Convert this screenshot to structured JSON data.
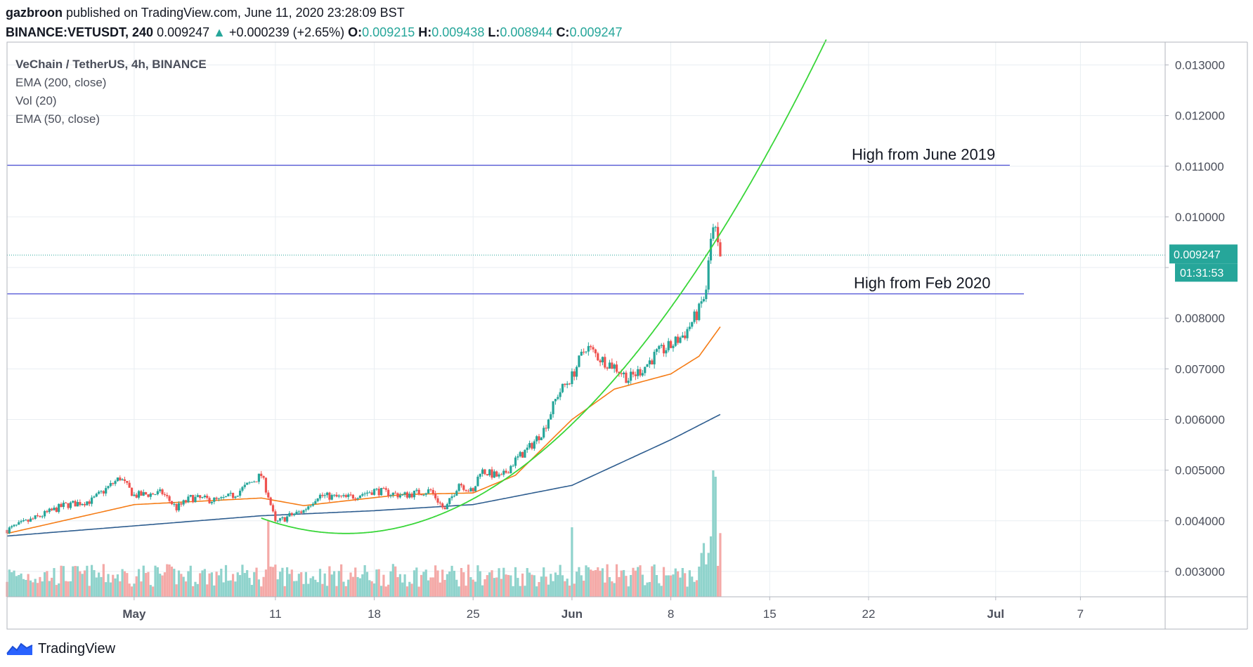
{
  "header": {
    "author": "gazbroon",
    "published_text": "published on TradingView.com, June 11, 2020 23:28:09 BST",
    "symbol": "BINANCE:VETUSDT, 240",
    "last": "0.009247",
    "change_arrow": "▲",
    "change": "+0.000239 (+2.65%)",
    "o_label": "O:",
    "o_value": "0.009215",
    "h_label": "H:",
    "h_value": "0.009438",
    "l_label": "L:",
    "l_value": "0.008944",
    "c_label": "C:",
    "c_value": "0.009247"
  },
  "legend": {
    "title": "VeChain / TetherUS, 4h, BINANCE",
    "items": [
      "EMA (200, close)",
      "Vol (20)",
      "EMA (50, close)"
    ]
  },
  "annotations": {
    "high_june_2019": "High from June 2019",
    "high_feb_2020": "High from Feb 2020"
  },
  "price_tag": "0.009247",
  "countdown_tag": "01:31:53",
  "footer": {
    "brand": "TradingView",
    "logo_icon": "tradingview-logo-icon"
  },
  "colors": {
    "up": "#26a69a",
    "down": "#ef5350",
    "ema50": "#f57c16",
    "ema200": "#2e5d8f",
    "curve": "#39d639",
    "hline": "#3b3fd1",
    "price_tag": "#26a69a"
  },
  "chart_data": {
    "type": "candlestick",
    "timeframe": "4h",
    "symbol": "VETUSDT",
    "y_ticks": [
      0.003,
      0.004,
      0.005,
      0.006,
      0.007,
      0.008,
      0.009,
      0.01,
      0.011,
      0.012,
      0.013
    ],
    "y_tick_labels": [
      "0.003000",
      "0.004000",
      "0.005000",
      "0.006000",
      "0.007000",
      "0.008000",
      "0.009000",
      "0.010000",
      "0.011000",
      "0.012000",
      "0.013000"
    ],
    "y_range": [
      0.0025,
      0.01345
    ],
    "x_ticks": [
      {
        "label": "May",
        "date": "2020-05-01",
        "bold": true
      },
      {
        "label": "11",
        "date": "2020-05-11",
        "bold": false
      },
      {
        "label": "18",
        "date": "2020-05-18",
        "bold": false
      },
      {
        "label": "25",
        "date": "2020-05-25",
        "bold": false
      },
      {
        "label": "Jun",
        "date": "2020-06-01",
        "bold": true
      },
      {
        "label": "8",
        "date": "2020-06-08",
        "bold": false
      },
      {
        "label": "15",
        "date": "2020-06-15",
        "bold": false
      },
      {
        "label": "22",
        "date": "2020-06-22",
        "bold": false
      },
      {
        "label": "Jul",
        "date": "2020-07-01",
        "bold": true
      },
      {
        "label": "7",
        "date": "2020-07-07",
        "bold": false
      }
    ],
    "x_range": [
      "2020-04-22",
      "2020-07-13"
    ],
    "price_anchor": [
      [
        "2020-04-22",
        0.00382
      ],
      [
        "2020-04-24",
        0.00405
      ],
      [
        "2020-04-26",
        0.0043
      ],
      [
        "2020-04-28",
        0.0044
      ],
      [
        "2020-04-30",
        0.00485
      ],
      [
        "2020-05-01",
        0.0045
      ],
      [
        "2020-05-03",
        0.00455
      ],
      [
        "2020-05-04",
        0.00425
      ],
      [
        "2020-05-05",
        0.00445
      ],
      [
        "2020-05-07",
        0.0044
      ],
      [
        "2020-05-08",
        0.0045
      ],
      [
        "2020-05-10",
        0.0049
      ],
      [
        "2020-05-10T12",
        0.0045
      ],
      [
        "2020-05-11",
        0.00395
      ],
      [
        "2020-05-12",
        0.0041
      ],
      [
        "2020-05-13",
        0.0042
      ],
      [
        "2020-05-14",
        0.0045
      ],
      [
        "2020-05-16",
        0.00445
      ],
      [
        "2020-05-18",
        0.0046
      ],
      [
        "2020-05-20",
        0.0045
      ],
      [
        "2020-05-22",
        0.0046
      ],
      [
        "2020-05-23",
        0.0042
      ],
      [
        "2020-05-24",
        0.00475
      ],
      [
        "2020-05-25",
        0.00455
      ],
      [
        "2020-05-25T12",
        0.005
      ],
      [
        "2020-05-27",
        0.00485
      ],
      [
        "2020-05-28",
        0.0052
      ],
      [
        "2020-05-29",
        0.00545
      ],
      [
        "2020-05-30",
        0.0058
      ],
      [
        "2020-05-31",
        0.0065
      ],
      [
        "2020-06-01",
        0.00685
      ],
      [
        "2020-06-02",
        0.00745
      ],
      [
        "2020-06-03",
        0.0072
      ],
      [
        "2020-06-04",
        0.00705
      ],
      [
        "2020-06-05",
        0.0068
      ],
      [
        "2020-06-06",
        0.007
      ],
      [
        "2020-06-07",
        0.0073
      ],
      [
        "2020-06-08",
        0.00745
      ],
      [
        "2020-06-09",
        0.0077
      ],
      [
        "2020-06-10",
        0.00815
      ],
      [
        "2020-06-10T12",
        0.0086
      ],
      [
        "2020-06-11",
        0.0099
      ],
      [
        "2020-06-11T12",
        0.0092
      ]
    ],
    "ema50_anchor": [
      [
        "2020-04-22",
        0.00375
      ],
      [
        "2020-05-01",
        0.00432
      ],
      [
        "2020-05-10",
        0.00445
      ],
      [
        "2020-05-13",
        0.0043
      ],
      [
        "2020-05-20",
        0.00452
      ],
      [
        "2020-05-25",
        0.00455
      ],
      [
        "2020-05-28",
        0.0049
      ],
      [
        "2020-06-01",
        0.006
      ],
      [
        "2020-06-04",
        0.0066
      ],
      [
        "2020-06-08",
        0.0069
      ],
      [
        "2020-06-10",
        0.00725
      ],
      [
        "2020-06-11T12",
        0.00783
      ]
    ],
    "ema200_anchor": [
      [
        "2020-04-22",
        0.0037
      ],
      [
        "2020-05-01",
        0.0039
      ],
      [
        "2020-05-10",
        0.0041
      ],
      [
        "2020-05-18",
        0.0042
      ],
      [
        "2020-05-25",
        0.00432
      ],
      [
        "2020-06-01",
        0.0047
      ],
      [
        "2020-06-08",
        0.0056
      ],
      [
        "2020-06-11T12",
        0.0061
      ]
    ],
    "parabola": {
      "start": "2020-05-10",
      "start_price": 0.00383,
      "vertex": "2020-05-16",
      "vertex_price": 0.00375,
      "through": "2020-06-19",
      "through_price": 0.0135
    },
    "horizontal_lines": [
      {
        "name": "High from June 2019",
        "price": 0.01102,
        "from": "2020-04-22",
        "to": "2020-07-02"
      },
      {
        "name": "High from Feb 2020",
        "price": 0.00848,
        "from": "2020-04-22",
        "to": "2020-07-03"
      }
    ],
    "last_price": 0.009247,
    "volume_scale_max": 1,
    "volume_spikes": [
      [
        "2020-05-10T12",
        0.6
      ],
      [
        "2020-06-01",
        0.55
      ],
      [
        "2020-06-11",
        1.0
      ],
      [
        "2020-06-11T04",
        0.95
      ]
    ]
  }
}
